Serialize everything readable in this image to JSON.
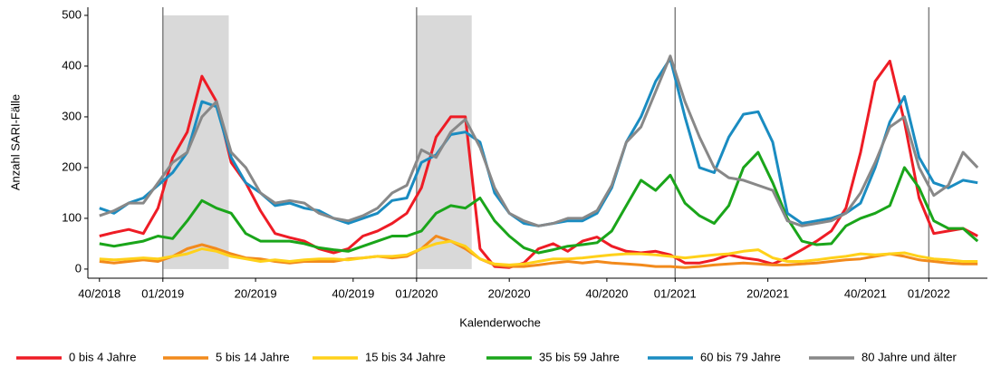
{
  "chart_data": {
    "type": "line",
    "x_label": "Kalenderwoche",
    "y_label": "Anzahl SARI-Fälle",
    "xlim": [
      -2,
      182
    ],
    "ylim": [
      -18,
      516
    ],
    "xticks": [
      {
        "value": 0,
        "label": "40/2018"
      },
      {
        "value": 13,
        "label": "01/2019"
      },
      {
        "value": 32,
        "label": "20/2019"
      },
      {
        "value": 52,
        "label": "40/2019"
      },
      {
        "value": 65,
        "label": "01/2020"
      },
      {
        "value": 84,
        "label": "20/2020"
      },
      {
        "value": 104,
        "label": "40/2020"
      },
      {
        "value": 118,
        "label": "01/2021"
      },
      {
        "value": 137,
        "label": "20/2021"
      },
      {
        "value": 157,
        "label": "40/2021"
      },
      {
        "value": 170,
        "label": "01/2022"
      }
    ],
    "yticks": [
      0,
      100,
      200,
      300,
      400,
      500
    ],
    "xgrid": [
      13,
      65,
      118,
      170
    ],
    "shaded_ranges": [
      [
        13,
        26.5
      ],
      [
        65,
        76.3
      ]
    ],
    "x": [
      0,
      3,
      6,
      9,
      12,
      15,
      18,
      21,
      24,
      27,
      30,
      33,
      36,
      39,
      42,
      45,
      48,
      51,
      54,
      57,
      60,
      63,
      66,
      69,
      72,
      75,
      78,
      81,
      84,
      87,
      90,
      93,
      96,
      99,
      102,
      105,
      108,
      111,
      114,
      117,
      120,
      123,
      126,
      129,
      132,
      135,
      138,
      141,
      144,
      147,
      150,
      153,
      156,
      159,
      162,
      165,
      168,
      171,
      174,
      177,
      180
    ],
    "legend_position": "bottom",
    "series": [
      {
        "name": "0 bis 4 Jahre",
        "color": "#ee1c25",
        "values": [
          65,
          72,
          78,
          70,
          120,
          220,
          270,
          380,
          330,
          210,
          170,
          115,
          70,
          62,
          55,
          40,
          32,
          40,
          65,
          75,
          90,
          110,
          160,
          260,
          300,
          300,
          40,
          5,
          3,
          12,
          40,
          50,
          35,
          55,
          63,
          45,
          35,
          32,
          35,
          28,
          12,
          12,
          18,
          28,
          22,
          18,
          10,
          22,
          38,
          55,
          75,
          120,
          230,
          370,
          410,
          290,
          140,
          70,
          75,
          80,
          65
        ]
      },
      {
        "name": "5 bis 14 Jahre",
        "color": "#f28a1c",
        "values": [
          15,
          12,
          15,
          18,
          15,
          25,
          40,
          48,
          40,
          30,
          22,
          20,
          15,
          12,
          15,
          15,
          15,
          20,
          22,
          25,
          22,
          25,
          40,
          65,
          55,
          40,
          20,
          8,
          5,
          5,
          8,
          12,
          15,
          12,
          15,
          12,
          10,
          8,
          5,
          5,
          3,
          5,
          8,
          10,
          12,
          10,
          8,
          8,
          10,
          12,
          15,
          18,
          20,
          25,
          30,
          25,
          18,
          15,
          12,
          10,
          10
        ]
      },
      {
        "name": "15 bis 34 Jahre",
        "color": "#ffd11a",
        "values": [
          20,
          18,
          20,
          22,
          20,
          25,
          30,
          40,
          35,
          25,
          20,
          15,
          18,
          15,
          18,
          20,
          20,
          18,
          22,
          25,
          25,
          28,
          40,
          50,
          55,
          45,
          20,
          10,
          8,
          10,
          15,
          20,
          20,
          22,
          25,
          28,
          30,
          30,
          28,
          25,
          22,
          25,
          28,
          30,
          35,
          38,
          22,
          15,
          15,
          18,
          22,
          25,
          30,
          28,
          30,
          32,
          25,
          20,
          18,
          15,
          15
        ]
      },
      {
        "name": "35 bis 59 Jahre",
        "color": "#1aa51a",
        "values": [
          50,
          45,
          50,
          55,
          65,
          60,
          95,
          135,
          120,
          110,
          70,
          55,
          55,
          55,
          50,
          42,
          38,
          35,
          45,
          55,
          65,
          65,
          75,
          110,
          125,
          120,
          140,
          95,
          65,
          42,
          32,
          38,
          45,
          48,
          52,
          75,
          125,
          175,
          155,
          185,
          130,
          105,
          90,
          125,
          200,
          230,
          170,
          100,
          55,
          48,
          50,
          85,
          100,
          110,
          125,
          200,
          160,
          95,
          80,
          80,
          55
        ]
      },
      {
        "name": "60 bis 79 Jahre",
        "color": "#1a8cc1",
        "values": [
          120,
          110,
          130,
          140,
          165,
          190,
          230,
          330,
          320,
          220,
          170,
          150,
          125,
          130,
          120,
          115,
          100,
          90,
          100,
          110,
          135,
          140,
          210,
          225,
          265,
          270,
          250,
          150,
          110,
          90,
          85,
          90,
          95,
          95,
          110,
          160,
          250,
          300,
          370,
          415,
          300,
          200,
          190,
          260,
          305,
          310,
          250,
          110,
          90,
          95,
          100,
          110,
          130,
          200,
          290,
          340,
          220,
          170,
          160,
          175,
          170
        ]
      },
      {
        "name": "80 Jahre und älter",
        "color": "#888888",
        "values": [
          105,
          115,
          130,
          130,
          170,
          210,
          230,
          300,
          330,
          230,
          200,
          150,
          130,
          135,
          130,
          110,
          100,
          95,
          105,
          120,
          150,
          165,
          235,
          220,
          270,
          295,
          240,
          160,
          110,
          95,
          85,
          90,
          100,
          100,
          115,
          165,
          250,
          280,
          350,
          420,
          330,
          260,
          200,
          180,
          175,
          165,
          155,
          95,
          85,
          90,
          95,
          110,
          150,
          210,
          280,
          300,
          200,
          145,
          165,
          230,
          200
        ]
      }
    ]
  }
}
